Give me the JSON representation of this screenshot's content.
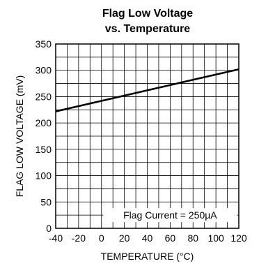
{
  "chart_data": {
    "type": "line",
    "title_line1": "Flag Low Voltage",
    "title_line2": "vs. Temperature",
    "xlabel": "TEMPERATURE (°C)",
    "ylabel": "FLAG LOW VOLTAGE (mV)",
    "xlim": [
      -40,
      120
    ],
    "ylim": [
      0,
      350
    ],
    "xticks": [
      -40,
      -20,
      0,
      20,
      40,
      60,
      80,
      100,
      120
    ],
    "yticks": [
      0,
      50,
      100,
      150,
      200,
      250,
      300,
      350
    ],
    "x_minor_step": 10,
    "y_minor_step": 25,
    "grid": true,
    "annotation": "Flag Current = 250µA",
    "series": [
      {
        "x": [
          -40,
          0,
          40,
          80,
          120
        ],
        "y": [
          222,
          242,
          262,
          282,
          302
        ],
        "color": "#000000"
      }
    ]
  }
}
